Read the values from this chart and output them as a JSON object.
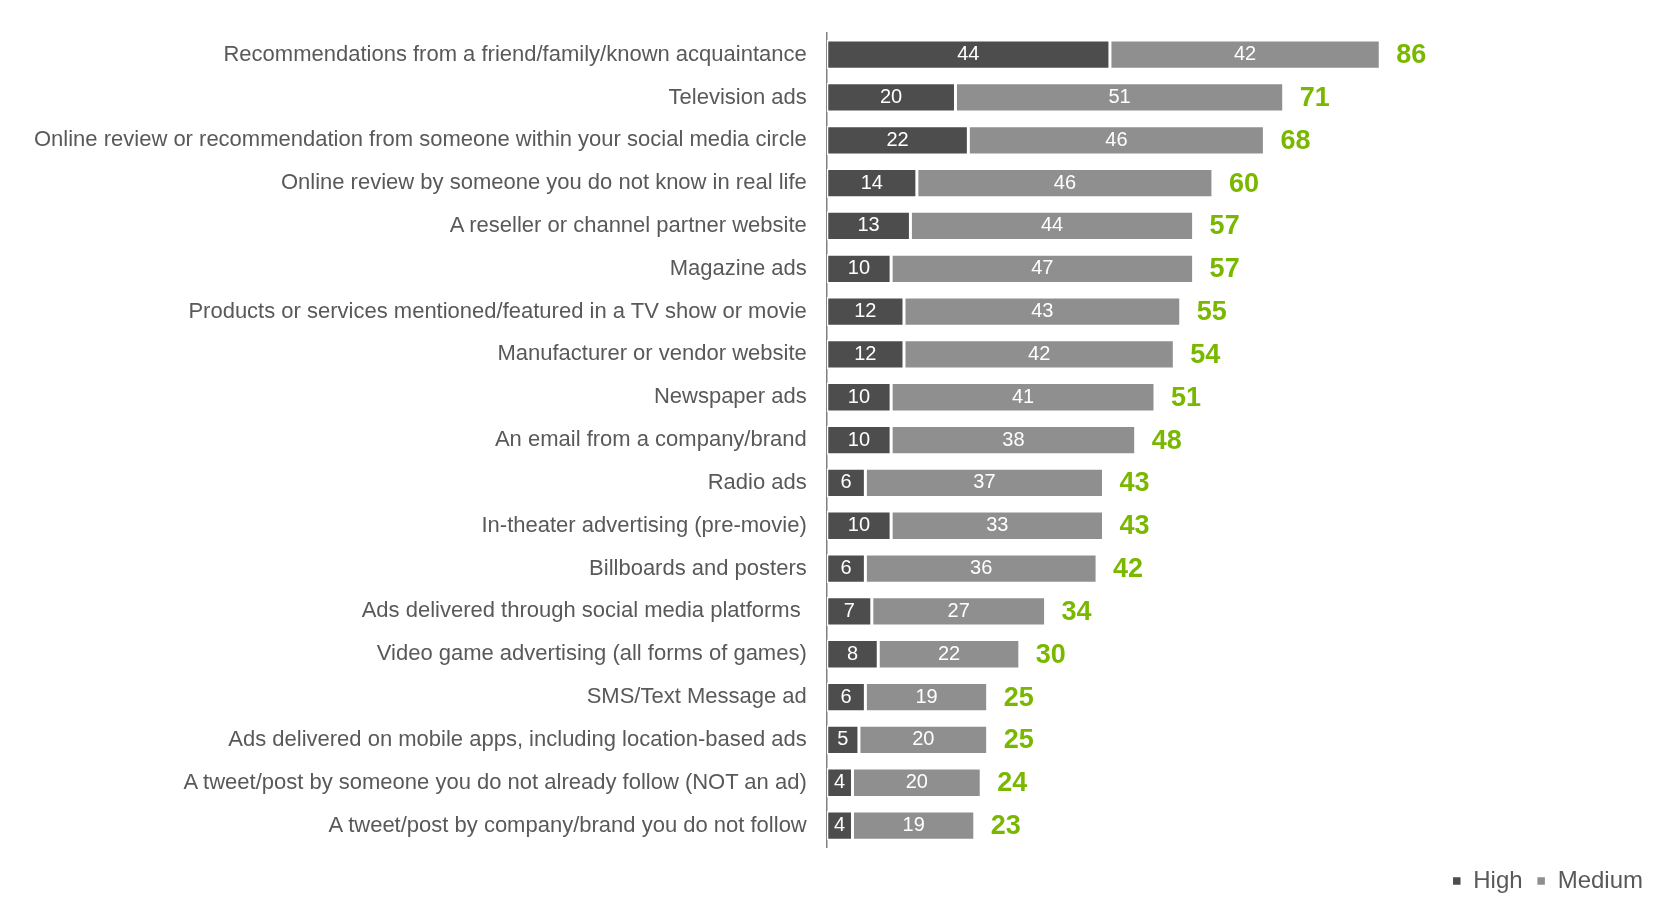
{
  "chart_data": {
    "type": "bar",
    "orientation": "horizontal",
    "stacked": true,
    "data_labels": true,
    "legend": "bottom right",
    "tick_labels": "y",
    "categories": [
      "Recommendations from a friend/family/known acquaintance",
      "Television ads",
      "Online review or recommendation from someone within your social media circle",
      "Online review by someone you do not know in real life",
      "A reseller or channel partner website",
      "Magazine ads",
      "Products or services mentioned/featured in a TV show or movie",
      "Manufacturer or vendor website",
      "Newspaper ads",
      "An email from a company/brand",
      "Radio ads",
      "In-theater advertising (pre-movie)",
      "Billboards and posters",
      "Ads delivered through social media platforms ",
      "Video game advertising (all forms of games)",
      "SMS/Text Message ad",
      "Ads delivered on mobile apps, including location-based ads",
      "A tweet/post by someone you do not already follow (NOT an ad)",
      "A tweet/post by company/brand you do not follow"
    ],
    "series": [
      {
        "name": "High",
        "color": "#4d4d4d",
        "values": [
          44,
          20,
          22,
          14,
          13,
          10,
          12,
          12,
          10,
          10,
          6,
          10,
          6,
          7,
          8,
          6,
          5,
          4,
          4
        ]
      },
      {
        "name": "Medium",
        "color": "#8f8f8f",
        "values": [
          42,
          51,
          46,
          46,
          44,
          47,
          43,
          42,
          41,
          38,
          37,
          33,
          36,
          27,
          22,
          19,
          20,
          20,
          19
        ]
      }
    ],
    "totals": [
      "86",
      "71",
      "68",
      "60",
      "57",
      "57",
      "55",
      "54",
      "51",
      "48",
      "43",
      "43",
      "42",
      "34",
      "30",
      "25",
      "25",
      "24",
      "23"
    ]
  }
}
